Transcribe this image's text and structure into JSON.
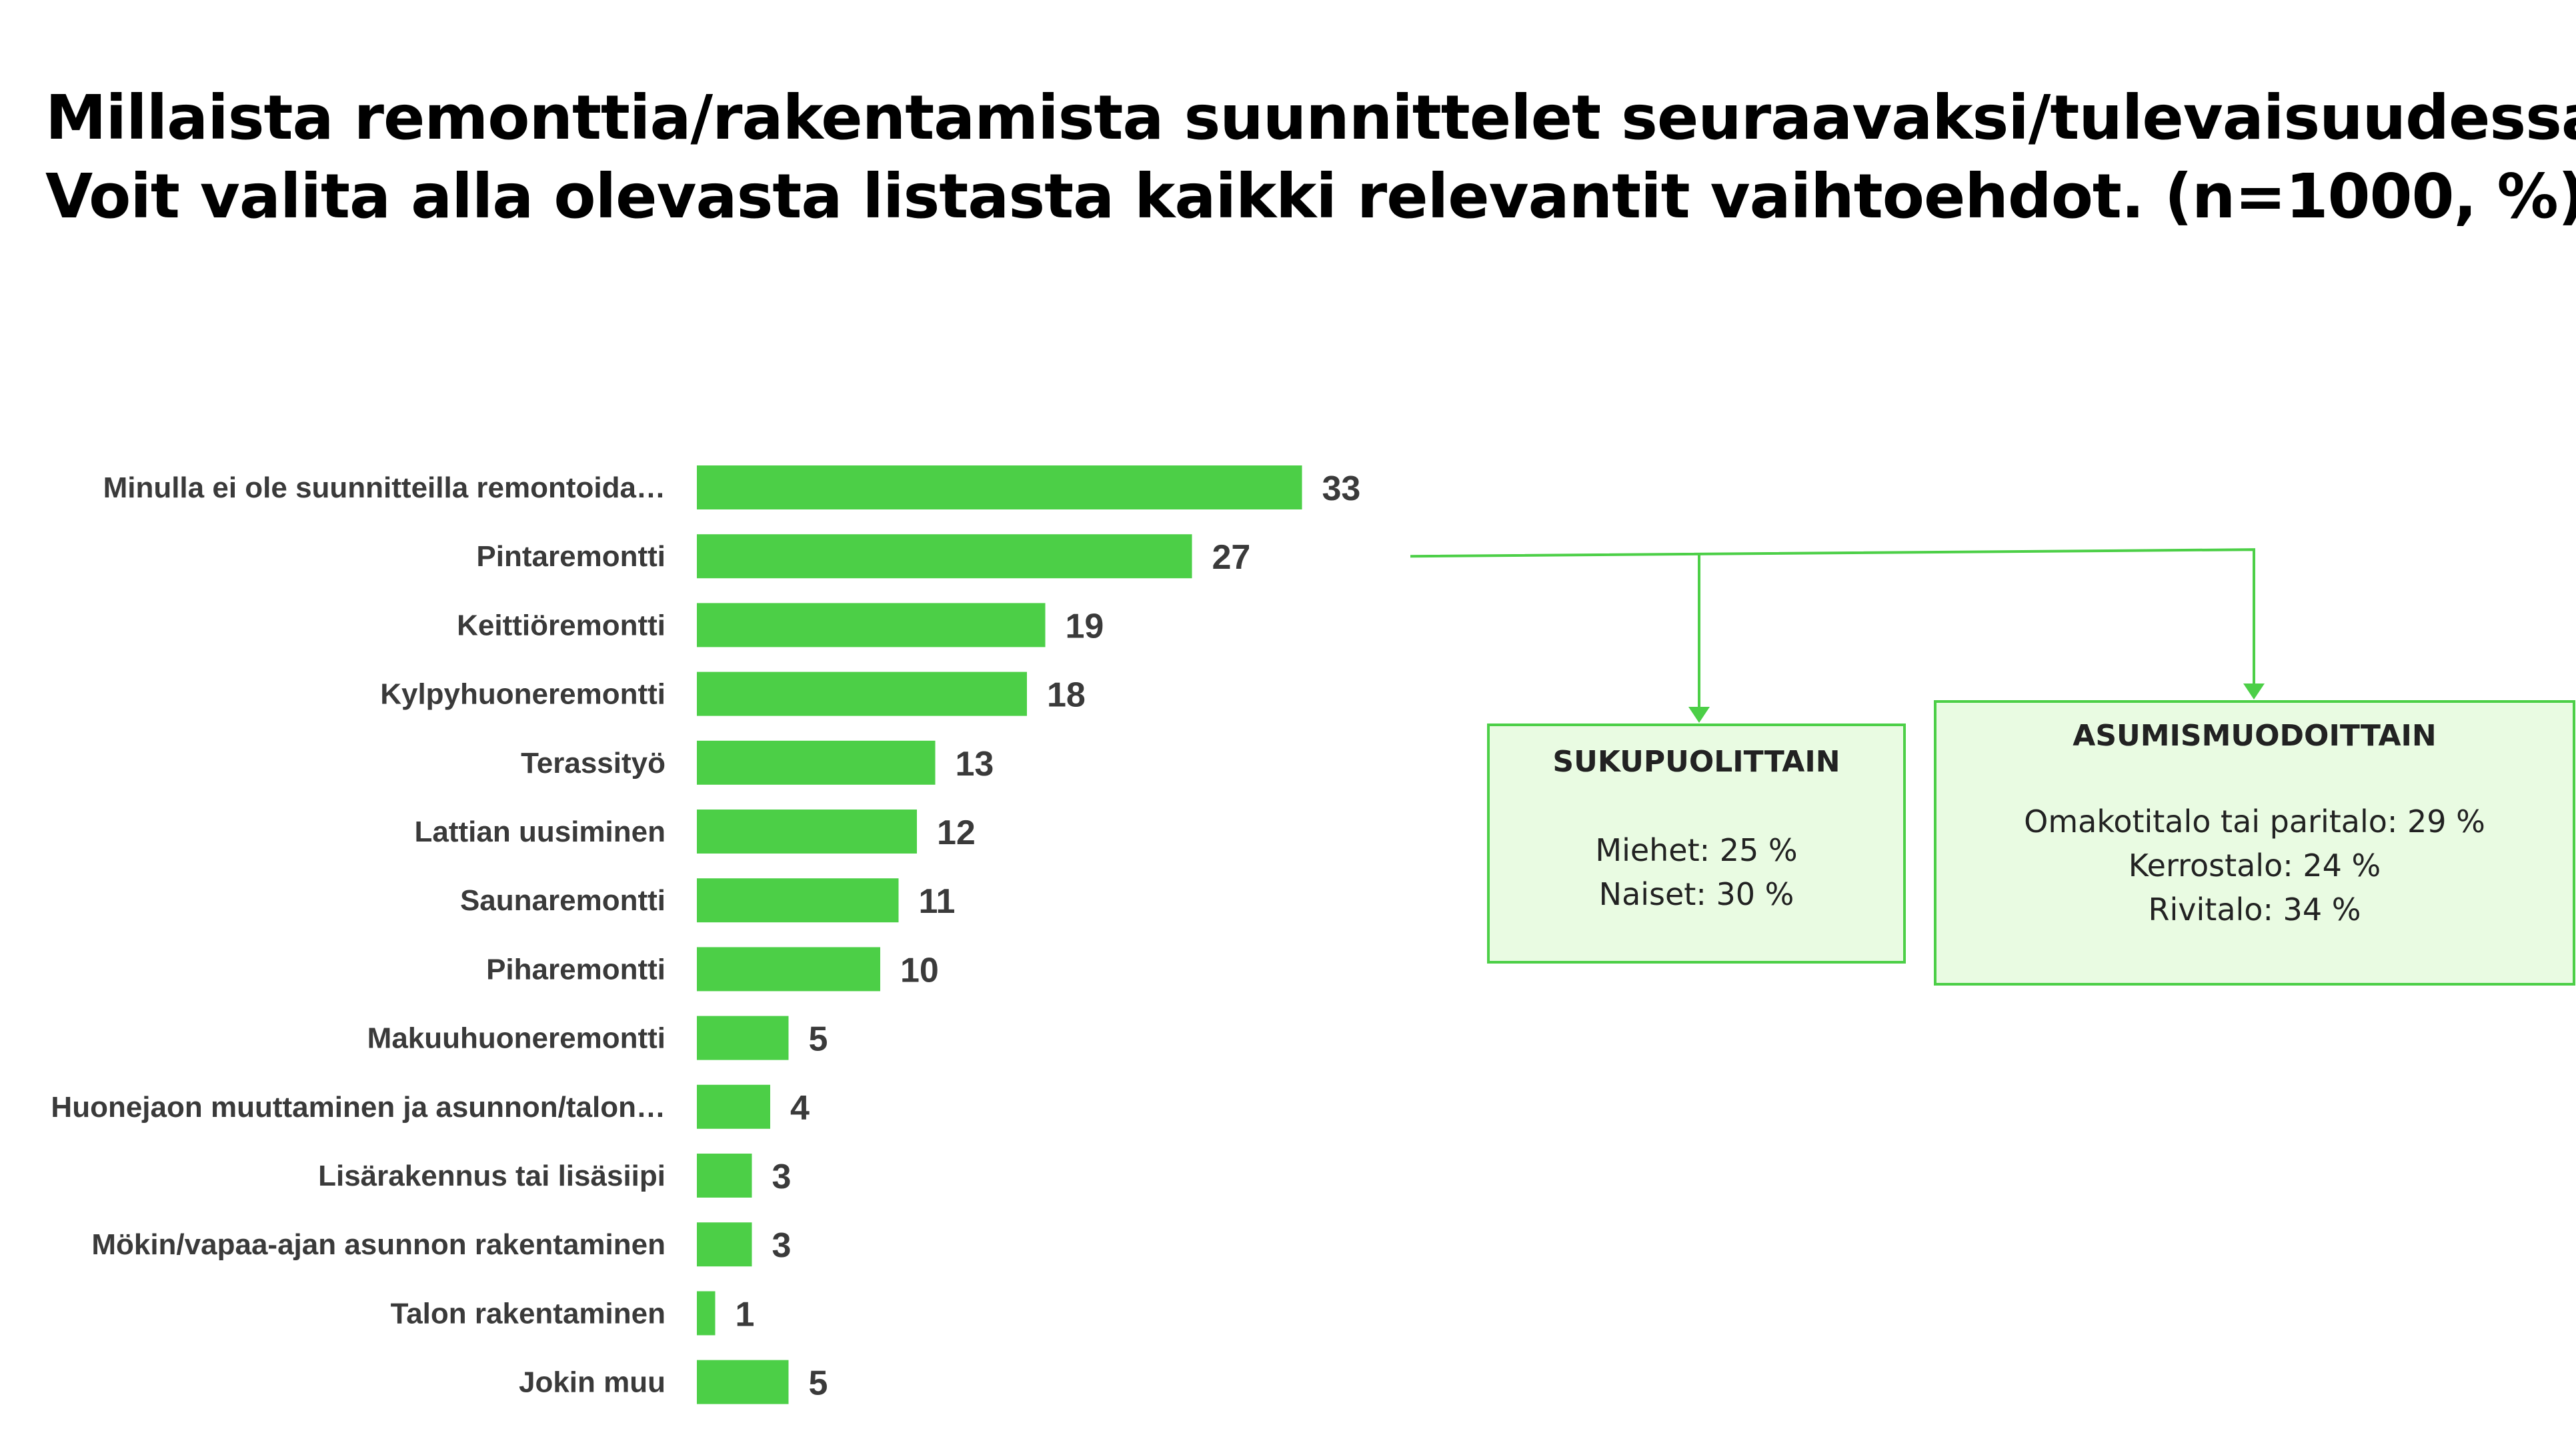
{
  "title": {
    "line1": "Millaista remonttia/rakentamista suunnittelet seuraavaksi/tulevaisuudessa?",
    "line2": "Voit valita alla olevasta listasta kaikki relevantit vaihtoehdot.  (n=1000, %)"
  },
  "chart_data": {
    "type": "bar",
    "orientation": "horizontal",
    "categories": [
      "Minulla ei ole suunnitteilla remontoida…",
      "Pintaremontti",
      "Keittiöremontti",
      "Kylpyhuoneremontti",
      "Terassityö",
      "Lattian uusiminen",
      "Saunaremontti",
      "Piharemontti",
      "Makuuhuoneremontti",
      "Huonejaon muuttaminen ja asunnon/talon…",
      "Lisärakennus tai lisäsiipi",
      "Mökin/vapaa-ajan asunnon rakentaminen",
      "Talon rakentaminen",
      "Jokin muu"
    ],
    "values": [
      33,
      27,
      19,
      18,
      13,
      12,
      11,
      10,
      5,
      4,
      3,
      3,
      1,
      5
    ],
    "bar_color": "#4ccf47",
    "grid": false,
    "legend": "none"
  },
  "annotations": {
    "gender": {
      "title": "SUKUPUOLITTAIN",
      "lines": [
        "Miehet: 25 %",
        "Naiset: 30 %"
      ]
    },
    "housing": {
      "title": "ASUMISMUODOITTAIN",
      "lines": [
        "Omakotitalo tai paritalo: 29 %",
        "Kerrostalo: 24 %",
        "Rivitalo: 34 %"
      ]
    },
    "connector_color": "#4ccf47"
  }
}
